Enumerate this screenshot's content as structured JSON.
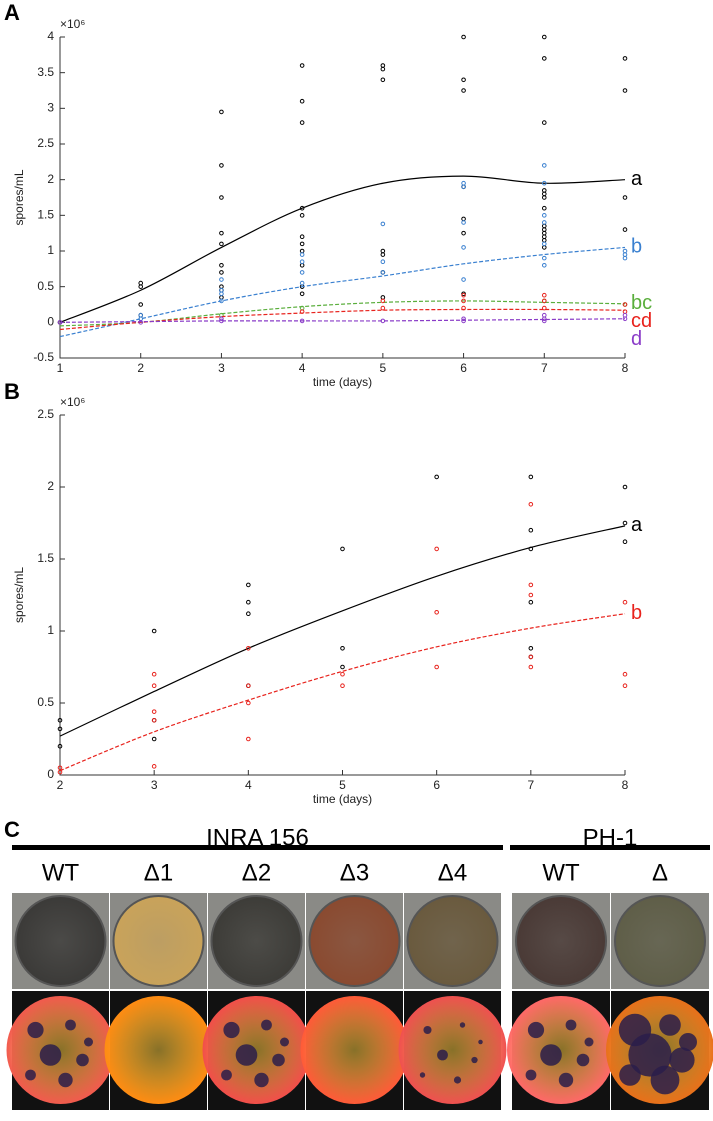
{
  "chart_data": [
    {
      "type": "scatter",
      "panel": "A",
      "x_label": "time (days)",
      "y_label": "spores/mL",
      "multiplier": "×10⁶",
      "x": [
        1,
        2,
        3,
        4,
        5,
        6,
        7,
        8
      ],
      "xlim": [
        1,
        8
      ],
      "xticks": [
        1,
        2,
        3,
        4,
        5,
        6,
        7,
        8
      ],
      "ylim": [
        -0.5,
        4
      ],
      "yticks": [
        -0.5,
        0,
        0.5,
        1,
        1.5,
        2,
        2.5,
        3,
        3.5,
        4
      ],
      "series": [
        {
          "name": "a",
          "color": "#000000",
          "line_style": "solid",
          "points_x": [
            1,
            2,
            2,
            2,
            2,
            3,
            3,
            3,
            3,
            3,
            3,
            3,
            3,
            3,
            3,
            4,
            4,
            4,
            4,
            4,
            4,
            4,
            4,
            4,
            4,
            4,
            5,
            5,
            5,
            5,
            5,
            5,
            5,
            6,
            6,
            6,
            6,
            6,
            6,
            6,
            7,
            7,
            7,
            7,
            7,
            7,
            7,
            7,
            7,
            7,
            7,
            7,
            7,
            8,
            8,
            8,
            8
          ],
          "points_y": [
            0,
            0.55,
            0.5,
            0.25,
            0.1,
            2.95,
            2.2,
            1.75,
            1.25,
            1.1,
            0.8,
            0.7,
            0.5,
            0.45,
            0.35,
            3.6,
            3.1,
            2.8,
            1.6,
            1.5,
            1.2,
            1.1,
            1.0,
            0.8,
            0.5,
            0.4,
            3.6,
            3.55,
            3.4,
            1.0,
            0.95,
            0.7,
            0.35,
            4.0,
            3.4,
            3.25,
            1.9,
            1.45,
            1.25,
            0.4,
            4.0,
            3.7,
            2.8,
            1.85,
            1.8,
            1.75,
            1.6,
            1.35,
            1.3,
            1.25,
            1.2,
            1.15,
            1.05,
            3.7,
            3.25,
            1.75,
            1.3
          ],
          "fit": [
            0,
            0.45,
            1.05,
            1.6,
            1.95,
            2.05,
            1.95,
            2.0
          ]
        },
        {
          "name": "b",
          "color": "#3a80d0",
          "line_style": "dashed",
          "points_x": [
            2,
            2,
            3,
            3,
            3,
            3,
            4,
            4,
            4,
            4,
            5,
            5,
            5,
            6,
            6,
            6,
            6,
            6,
            7,
            7,
            7,
            7,
            7,
            7,
            7,
            8,
            8,
            8
          ],
          "points_y": [
            0.05,
            0.1,
            0.6,
            0.45,
            0.4,
            0.3,
            0.95,
            0.85,
            0.7,
            0.55,
            1.38,
            0.85,
            0.7,
            1.95,
            1.9,
            1.4,
            1.05,
            0.6,
            2.2,
            1.95,
            1.5,
            1.4,
            1.1,
            0.9,
            0.8,
            1.0,
            0.95,
            0.9
          ],
          "fit": [
            -0.2,
            0.05,
            0.3,
            0.5,
            0.65,
            0.82,
            0.95,
            1.05
          ]
        },
        {
          "name": "bc",
          "color": "#5aae3c",
          "line_style": "dashed",
          "points_x": [
            3,
            4,
            7,
            8
          ],
          "points_y": [
            0.1,
            0.2,
            0.3,
            0.25
          ],
          "fit": [
            -0.05,
            0,
            0.12,
            0.22,
            0.28,
            0.3,
            0.28,
            0.26
          ]
        },
        {
          "name": "cd",
          "color": "#e8231d",
          "line_style": "dashed",
          "points_x": [
            4,
            5,
            5,
            6,
            6,
            6,
            7,
            7,
            7,
            8,
            8
          ],
          "points_y": [
            0.15,
            0.3,
            0.2,
            0.38,
            0.3,
            0.2,
            0.38,
            0.3,
            0.2,
            0.25,
            0.15
          ],
          "fit": [
            -0.1,
            0,
            0.08,
            0.13,
            0.17,
            0.18,
            0.18,
            0.17
          ]
        },
        {
          "name": "d",
          "color": "#8a3cc8",
          "line_style": "dashed",
          "points_x": [
            1,
            2,
            3,
            3,
            4,
            5,
            6,
            6,
            7,
            7,
            7,
            8,
            8
          ],
          "points_y": [
            0,
            0,
            0.05,
            0.02,
            0.02,
            0.02,
            0.05,
            0.02,
            0.1,
            0.05,
            0.02,
            0.1,
            0.05
          ],
          "fit": [
            0,
            0.01,
            0.02,
            0.02,
            0.02,
            0.03,
            0.04,
            0.05
          ]
        }
      ]
    },
    {
      "type": "scatter",
      "panel": "B",
      "x_label": "time (days)",
      "y_label": "spores/mL",
      "multiplier": "×10⁶",
      "x": [
        2,
        3,
        4,
        5,
        6,
        7,
        8
      ],
      "xlim": [
        2,
        8
      ],
      "xticks": [
        2,
        3,
        4,
        5,
        6,
        7,
        8
      ],
      "ylim": [
        0,
        2.5
      ],
      "yticks": [
        0,
        0.5,
        1,
        1.5,
        2,
        2.5
      ],
      "series": [
        {
          "name": "a",
          "color": "#000000",
          "line_style": "solid",
          "points_x": [
            2,
            2,
            2,
            3,
            3,
            3,
            4,
            4,
            4,
            4,
            5,
            5,
            5,
            6,
            7,
            7,
            7,
            7,
            7,
            7,
            8,
            8,
            8
          ],
          "points_y": [
            0.38,
            0.32,
            0.2,
            1.0,
            0.38,
            0.25,
            1.32,
            1.2,
            1.12,
            0.62,
            1.57,
            0.88,
            0.75,
            2.07,
            2.07,
            1.7,
            1.57,
            1.2,
            0.88,
            0.82,
            2.0,
            1.75,
            1.62
          ],
          "fit": [
            0.27,
            0.58,
            0.88,
            1.14,
            1.38,
            1.58,
            1.73
          ]
        },
        {
          "name": "b",
          "color": "#e8231d",
          "line_style": "dashed",
          "points_x": [
            2,
            2,
            3,
            3,
            3,
            3,
            3,
            4,
            4,
            4,
            4,
            5,
            5,
            6,
            6,
            6,
            7,
            7,
            7,
            7,
            7,
            8,
            8,
            8
          ],
          "points_y": [
            0.05,
            0.02,
            0.7,
            0.62,
            0.44,
            0.38,
            0.06,
            0.88,
            0.62,
            0.5,
            0.25,
            0.7,
            0.62,
            1.57,
            1.13,
            0.75,
            1.88,
            1.32,
            1.25,
            0.82,
            0.75,
            1.2,
            0.7,
            0.62
          ],
          "fit": [
            0.03,
            0.3,
            0.52,
            0.72,
            0.89,
            1.02,
            1.12
          ]
        }
      ]
    }
  ],
  "panel_c": {
    "label": "C",
    "groups": [
      {
        "name": "INRA 156",
        "strains": [
          "WT",
          "Δ1",
          "Δ2",
          "Δ3",
          "Δ4"
        ]
      },
      {
        "name": "PH-1",
        "strains": [
          "WT",
          "Δ"
        ]
      }
    ]
  }
}
